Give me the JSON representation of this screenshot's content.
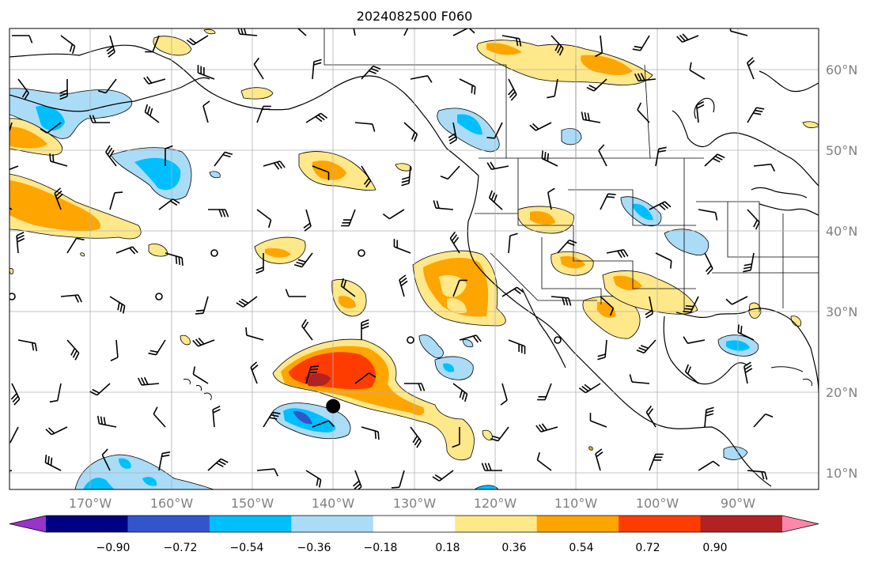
{
  "title": "2024082500 F060",
  "map": {
    "lon_range": [
      -180,
      -80
    ],
    "lat_range": [
      8,
      65
    ],
    "grid": true,
    "lat_labels": [
      "60°N",
      "50°N",
      "40°N",
      "30°N",
      "20°N",
      "10°N"
    ],
    "lon_labels": [
      "170°W",
      "160°W",
      "150°W",
      "140°W",
      "130°W",
      "120°W",
      "110°W",
      "100°W",
      "90°W"
    ],
    "storm_marker": {
      "lon": -140,
      "lat": 18.3
    }
  },
  "colorbar": {
    "ticks": [
      "−0.90",
      "−0.72",
      "−0.54",
      "−0.36",
      "−0.18",
      "0.18",
      "0.36",
      "0.54",
      "0.72",
      "0.90"
    ],
    "colors": [
      "#9933cc",
      "#000080",
      "#3355cc",
      "#00bfff",
      "#aadcf8",
      "#ffffff",
      "#ffe88a",
      "#ffa500",
      "#ff3c00",
      "#b22222",
      "#ff88aa"
    ],
    "extend": "both"
  }
}
